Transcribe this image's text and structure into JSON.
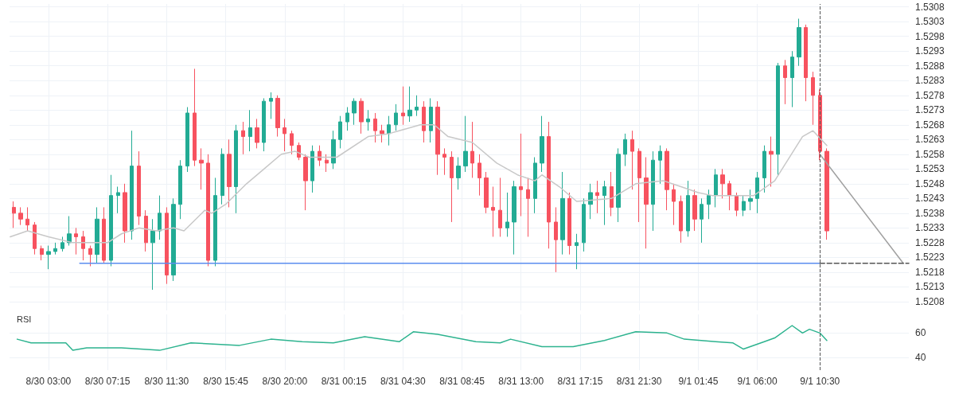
{
  "chart_data": [
    {
      "type": "candlestick",
      "grid": true,
      "tick_labels": "y",
      "xlim": [
        "--08-30T00:12",
        "--09-01T16:54"
      ],
      "ylim": [
        1.5205,
        1.5309
      ],
      "xticks": [
        {
          "value": "--08-30T03:00",
          "label": null
        },
        {
          "value": "--08-30T07:15",
          "label": null
        },
        {
          "value": "--08-30T11:30",
          "label": null
        },
        {
          "value": "--08-30T15:45",
          "label": null
        },
        {
          "value": "--08-30T20:00",
          "label": null
        },
        {
          "value": "--08-31T00:15",
          "label": null
        },
        {
          "value": "--08-31T04:30",
          "label": null
        },
        {
          "value": "--08-31T08:45",
          "label": null
        },
        {
          "value": "--08-31T13:00",
          "label": null
        },
        {
          "value": "--08-31T17:15",
          "label": null
        },
        {
          "value": "--08-31T21:30",
          "label": null
        },
        {
          "value": "--09-01T01:45",
          "label": null
        },
        {
          "value": "--09-01T06:00",
          "label": null
        },
        {
          "value": "--09-01T10:30",
          "label": null
        }
      ],
      "yticks": [
        1.5208,
        1.5213,
        1.5218,
        1.5223,
        1.5228,
        1.5233,
        1.5238,
        1.5243,
        1.5248,
        1.5253,
        1.5258,
        1.5263,
        1.5268,
        1.5273,
        1.5278,
        1.5283,
        1.5288,
        1.5293,
        1.5298,
        1.5303,
        1.5308
      ],
      "ref_lines": [
        {
          "axis": "x",
          "value": "--09-01T10:30",
          "color": "#555555",
          "line_style": "dashed"
        }
      ],
      "series": [
        {
          "x": [
            "--08-30T00:30",
            "--08-30T01:00",
            "--08-30T01:30",
            "--08-30T02:00",
            "--08-30T02:30",
            "--08-30T03:00",
            "--08-30T03:30",
            "--08-30T04:00",
            "--08-30T04:30",
            "--08-30T05:00",
            "--08-30T05:30",
            "--08-30T06:00",
            "--08-30T06:30",
            "--08-30T07:00",
            "--08-30T07:30",
            "--08-30T08:00",
            "--08-30T08:30",
            "--08-30T09:00",
            "--08-30T09:30",
            "--08-30T10:00",
            "--08-30T10:30",
            "--08-30T11:00",
            "--08-30T11:30",
            "--08-30T12:00",
            "--08-30T12:30",
            "--08-30T13:00",
            "--08-30T13:30",
            "--08-30T14:00",
            "--08-30T14:30",
            "--08-30T15:00",
            "--08-30T15:30",
            "--08-30T16:00",
            "--08-30T16:30",
            "--08-30T17:00",
            "--08-30T17:30",
            "--08-30T18:00",
            "--08-30T18:30",
            "--08-30T19:00",
            "--08-30T19:30",
            "--08-30T20:00",
            "--08-30T20:30",
            "--08-30T21:00",
            "--08-30T21:30",
            "--08-30T22:00",
            "--08-30T22:30",
            "--08-30T23:00",
            "--08-30T23:30",
            "--08-31T00:00",
            "--08-31T00:30",
            "--08-31T01:00",
            "--08-31T01:30",
            "--08-31T02:00",
            "--08-31T02:30",
            "--08-31T03:00",
            "--08-31T03:30",
            "--08-31T04:00",
            "--08-31T04:30",
            "--08-31T05:00",
            "--08-31T05:30",
            "--08-31T06:00",
            "--08-31T06:30",
            "--08-31T07:00",
            "--08-31T07:30",
            "--08-31T08:00",
            "--08-31T08:30",
            "--08-31T09:00",
            "--08-31T09:30",
            "--08-31T10:00",
            "--08-31T10:30",
            "--08-31T11:00",
            "--08-31T11:30",
            "--08-31T12:00",
            "--08-31T12:30",
            "--08-31T13:00",
            "--08-31T13:30",
            "--08-31T14:00",
            "--08-31T14:30",
            "--08-31T15:00",
            "--08-31T15:30",
            "--08-31T16:00",
            "--08-31T16:30",
            "--08-31T17:00",
            "--08-31T17:30",
            "--08-31T18:00",
            "--08-31T18:30",
            "--08-31T19:00",
            "--08-31T19:30",
            "--08-31T20:00",
            "--08-31T20:30",
            "--08-31T21:00",
            "--08-31T21:30",
            "--08-31T22:00",
            "--08-31T22:30",
            "--08-31T23:00",
            "--08-31T23:30",
            "--09-01T00:00",
            "--09-01T00:30",
            "--09-01T01:00",
            "--09-01T01:30",
            "--09-01T02:00",
            "--09-01T02:30",
            "--09-01T03:00",
            "--09-01T03:30",
            "--09-01T04:00",
            "--09-01T04:30",
            "--09-01T05:00",
            "--09-01T05:30",
            "--09-01T06:00",
            "--09-01T06:30",
            "--09-01T07:00",
            "--09-01T07:30",
            "--09-01T08:00",
            "--09-01T08:30",
            "--09-01T09:00",
            "--09-01T09:30",
            "--09-01T10:00",
            "--09-01T10:30",
            "--09-01T11:00"
          ],
          "ohlc": [
            [
              1.524,
              1.5242,
              1.5233,
              1.5238
            ],
            [
              1.5238,
              1.524,
              1.5234,
              1.5236
            ],
            [
              1.5236,
              1.524,
              1.5232,
              1.5234
            ],
            [
              1.5234,
              1.5235,
              1.5224,
              1.5226
            ],
            [
              1.5226,
              1.5227,
              1.5222,
              1.5224
            ],
            [
              1.5224,
              1.5227,
              1.5219,
              1.5225
            ],
            [
              1.5225,
              1.5228,
              1.5224,
              1.5226
            ],
            [
              1.5226,
              1.523,
              1.5225,
              1.5228
            ],
            [
              1.5228,
              1.5237,
              1.5227,
              1.5231
            ],
            [
              1.5231,
              1.5233,
              1.5224,
              1.523
            ],
            [
              1.523,
              1.5232,
              1.5222,
              1.5226
            ],
            [
              1.5226,
              1.5227,
              1.522,
              1.5224
            ],
            [
              1.5224,
              1.524,
              1.5221,
              1.5236
            ],
            [
              1.5236,
              1.524,
              1.5221,
              1.5222
            ],
            [
              1.5222,
              1.5251,
              1.522,
              1.5244
            ],
            [
              1.5244,
              1.5247,
              1.5238,
              1.5245
            ],
            [
              1.5245,
              1.5248,
              1.5228,
              1.5232
            ],
            [
              1.5232,
              1.5266,
              1.5229,
              1.5254
            ],
            [
              1.5254,
              1.5259,
              1.5234,
              1.5237
            ],
            [
              1.5237,
              1.5239,
              1.5225,
              1.5228
            ],
            [
              1.5228,
              1.5236,
              1.5212,
              1.5232
            ],
            [
              1.5232,
              1.5244,
              1.5229,
              1.5238
            ],
            [
              1.5238,
              1.524,
              1.5214,
              1.5217
            ],
            [
              1.5217,
              1.5243,
              1.5215,
              1.5241
            ],
            [
              1.5241,
              1.5256,
              1.5236,
              1.5254
            ],
            [
              1.5254,
              1.5274,
              1.5252,
              1.5272
            ],
            [
              1.5272,
              1.5287,
              1.5254,
              1.5256
            ],
            [
              1.5256,
              1.526,
              1.5246,
              1.5255
            ],
            [
              1.5255,
              1.5258,
              1.522,
              1.5222
            ],
            [
              1.5222,
              1.525,
              1.522,
              1.5244
            ],
            [
              1.5244,
              1.526,
              1.5241,
              1.5258
            ],
            [
              1.5258,
              1.5263,
              1.524,
              1.5247
            ],
            [
              1.5247,
              1.5268,
              1.5238,
              1.5266
            ],
            [
              1.5266,
              1.5269,
              1.5258,
              1.5264
            ],
            [
              1.5264,
              1.5273,
              1.5259,
              1.5267
            ],
            [
              1.5267,
              1.527,
              1.526,
              1.5262
            ],
            [
              1.5262,
              1.5277,
              1.5259,
              1.5276
            ],
            [
              1.5276,
              1.5279,
              1.527,
              1.5277
            ],
            [
              1.5277,
              1.5278,
              1.5264,
              1.5267
            ],
            [
              1.5267,
              1.527,
              1.5259,
              1.5265
            ],
            [
              1.5265,
              1.5266,
              1.5258,
              1.5261
            ],
            [
              1.5261,
              1.5262,
              1.5256,
              1.5257
            ],
            [
              1.5257,
              1.5258,
              1.5239,
              1.5249
            ],
            [
              1.5249,
              1.5261,
              1.5245,
              1.5259
            ],
            [
              1.5259,
              1.5261,
              1.5254,
              1.5256
            ],
            [
              1.5256,
              1.5258,
              1.5252,
              1.5255
            ],
            [
              1.5255,
              1.5266,
              1.5253,
              1.5263
            ],
            [
              1.5263,
              1.5271,
              1.526,
              1.5269
            ],
            [
              1.5269,
              1.5274,
              1.5266,
              1.5272
            ],
            [
              1.5272,
              1.5277,
              1.5268,
              1.5276
            ],
            [
              1.5276,
              1.5277,
              1.5265,
              1.5269
            ],
            [
              1.5269,
              1.5273,
              1.5266,
              1.527
            ],
            [
              1.527,
              1.5272,
              1.5262,
              1.5266
            ],
            [
              1.5266,
              1.5268,
              1.5262,
              1.5265
            ],
            [
              1.5265,
              1.5271,
              1.5261,
              1.5268
            ],
            [
              1.5268,
              1.5275,
              1.5266,
              1.5272
            ],
            [
              1.5272,
              1.5281,
              1.5268,
              1.5271
            ],
            [
              1.5271,
              1.5281,
              1.5269,
              1.5273
            ],
            [
              1.5273,
              1.5278,
              1.5271,
              1.5274
            ],
            [
              1.5274,
              1.5276,
              1.5262,
              1.5266
            ],
            [
              1.5266,
              1.5277,
              1.5262,
              1.5274
            ],
            [
              1.5274,
              1.5276,
              1.5251,
              1.5258
            ],
            [
              1.5258,
              1.526,
              1.5251,
              1.5257
            ],
            [
              1.5257,
              1.5259,
              1.5235,
              1.525
            ],
            [
              1.525,
              1.5257,
              1.5246,
              1.5254
            ],
            [
              1.5254,
              1.5271,
              1.5252,
              1.5259
            ],
            [
              1.5259,
              1.5269,
              1.525,
              1.5255
            ],
            [
              1.5255,
              1.5258,
              1.5244,
              1.525
            ],
            [
              1.525,
              1.5252,
              1.5238,
              1.524
            ],
            [
              1.524,
              1.5247,
              1.523,
              1.5239
            ],
            [
              1.5239,
              1.525,
              1.523,
              1.5233
            ],
            [
              1.5233,
              1.5245,
              1.523,
              1.5235
            ],
            [
              1.5235,
              1.5249,
              1.5224,
              1.5247
            ],
            [
              1.5247,
              1.5265,
              1.5237,
              1.5246
            ],
            [
              1.5246,
              1.525,
              1.523,
              1.5243
            ],
            [
              1.5243,
              1.5257,
              1.5238,
              1.5255
            ],
            [
              1.5255,
              1.5271,
              1.5252,
              1.5264
            ],
            [
              1.5264,
              1.5269,
              1.5226,
              1.5235
            ],
            [
              1.5235,
              1.524,
              1.5218,
              1.5229
            ],
            [
              1.5229,
              1.5252,
              1.5224,
              1.5243
            ],
            [
              1.5243,
              1.5245,
              1.5224,
              1.5227
            ],
            [
              1.5227,
              1.5231,
              1.5219,
              1.5228
            ],
            [
              1.5228,
              1.5243,
              1.5225,
              1.5241
            ],
            [
              1.5241,
              1.5248,
              1.5236,
              1.5245
            ],
            [
              1.5245,
              1.5249,
              1.5238,
              1.5244
            ],
            [
              1.5244,
              1.5249,
              1.5234,
              1.5247
            ],
            [
              1.5247,
              1.5252,
              1.5237,
              1.524
            ],
            [
              1.524,
              1.526,
              1.5235,
              1.5258
            ],
            [
              1.5258,
              1.5265,
              1.5254,
              1.5263
            ],
            [
              1.5263,
              1.5266,
              1.5246,
              1.5259
            ],
            [
              1.5259,
              1.526,
              1.5235,
              1.525
            ],
            [
              1.525,
              1.5257,
              1.5226,
              1.5241
            ],
            [
              1.5241,
              1.5259,
              1.5232,
              1.5256
            ],
            [
              1.5256,
              1.5261,
              1.5248,
              1.5259
            ],
            [
              1.5259,
              1.526,
              1.5239,
              1.5246
            ],
            [
              1.5246,
              1.5248,
              1.5234,
              1.5242
            ],
            [
              1.5242,
              1.5244,
              1.5228,
              1.5232
            ],
            [
              1.5232,
              1.5249,
              1.523,
              1.5244
            ],
            [
              1.5244,
              1.5246,
              1.5232,
              1.5236
            ],
            [
              1.5236,
              1.5243,
              1.5228,
              1.5241
            ],
            [
              1.5241,
              1.5246,
              1.5236,
              1.5244
            ],
            [
              1.5244,
              1.5253,
              1.524,
              1.5251
            ],
            [
              1.5251,
              1.5253,
              1.5243,
              1.5248
            ],
            [
              1.5248,
              1.5249,
              1.5239,
              1.5244
            ],
            [
              1.5244,
              1.5245,
              1.5237,
              1.5239
            ],
            [
              1.5239,
              1.5244,
              1.5237,
              1.5242
            ],
            [
              1.5242,
              1.5246,
              1.5239,
              1.5243
            ],
            [
              1.5243,
              1.5252,
              1.5238,
              1.525
            ],
            [
              1.525,
              1.5261,
              1.5245,
              1.5259
            ],
            [
              1.5259,
              1.5264,
              1.5247,
              1.5258
            ],
            [
              1.5258,
              1.5289,
              1.5251,
              1.5288
            ],
            [
              1.5288,
              1.529,
              1.5275,
              1.5284
            ],
            [
              1.5284,
              1.5293,
              1.5274,
              1.5291
            ],
            [
              1.5291,
              1.5304,
              1.5288,
              1.5301
            ],
            [
              1.5301,
              1.5302,
              1.5276,
              1.5284
            ],
            [
              1.5284,
              1.5286,
              1.5268,
              1.5278
            ],
            [
              1.5278,
              1.528,
              1.5256,
              1.5259
            ],
            [
              1.5259,
              1.526,
              1.5229,
              1.5232
            ]
          ],
          "colors": [
            "#f7525f",
            "#f7525f",
            "#f7525f",
            "#f7525f",
            "#f7525f",
            "#22ab94",
            "#22ab94",
            "#22ab94",
            "#22ab94",
            "#f7525f",
            "#f7525f",
            "#f7525f",
            "#22ab94",
            "#f7525f",
            "#22ab94",
            "#22ab94",
            "#f7525f",
            "#22ab94",
            "#f7525f",
            "#f7525f",
            "#22ab94",
            "#22ab94",
            "#f7525f",
            "#22ab94",
            "#22ab94",
            "#22ab94",
            "#f7525f",
            "#f7525f",
            "#f7525f",
            "#22ab94",
            "#22ab94",
            "#f7525f",
            "#22ab94",
            "#f7525f",
            "#22ab94",
            "#f7525f",
            "#22ab94",
            "#22ab94",
            "#f7525f",
            "#f7525f",
            "#f7525f",
            "#f7525f",
            "#f7525f",
            "#22ab94",
            "#f7525f",
            "#f7525f",
            "#22ab94",
            "#22ab94",
            "#22ab94",
            "#22ab94",
            "#f7525f",
            "#22ab94",
            "#f7525f",
            "#f7525f",
            "#22ab94",
            "#22ab94",
            "#f7525f",
            "#22ab94",
            "#22ab94",
            "#f7525f",
            "#22ab94",
            "#f7525f",
            "#f7525f",
            "#f7525f",
            "#22ab94",
            "#22ab94",
            "#f7525f",
            "#f7525f",
            "#f7525f",
            "#f7525f",
            "#f7525f",
            "#22ab94",
            "#22ab94",
            "#f7525f",
            "#f7525f",
            "#22ab94",
            "#22ab94",
            "#f7525f",
            "#f7525f",
            "#22ab94",
            "#f7525f",
            "#22ab94",
            "#22ab94",
            "#22ab94",
            "#f7525f",
            "#22ab94",
            "#f7525f",
            "#22ab94",
            "#22ab94",
            "#f7525f",
            "#f7525f",
            "#f7525f",
            "#22ab94",
            "#22ab94",
            "#f7525f",
            "#f7525f",
            "#f7525f",
            "#22ab94",
            "#f7525f",
            "#22ab94",
            "#22ab94",
            "#22ab94",
            "#f7525f",
            "#f7525f",
            "#f7525f",
            "#22ab94",
            "#22ab94",
            "#22ab94",
            "#22ab94",
            "#f7525f",
            "#22ab94",
            "#f7525f",
            "#22ab94",
            "#22ab94",
            "#f7525f",
            "#f7525f",
            "#f7525f",
            "#f7525f"
          ]
        },
        {
          "type": "line",
          "color": "#c8c8c8",
          "x": [
            "--08-30T00:15",
            "--08-30T01:30",
            "--08-30T03:00",
            "--08-30T04:45",
            "--08-30T06:15",
            "--08-30T07:15",
            "--08-30T08:15",
            "--08-30T09:30",
            "--08-30T10:45",
            "--08-30T12:00",
            "--08-30T12:45",
            "--08-30T14:15",
            "--08-30T14:45",
            "--08-30T15:45",
            "--08-30T17:15",
            "--08-30T18:30",
            "--08-30T19:45",
            "--08-30T20:45",
            "--08-30T21:45",
            "--08-30T23:45",
            "--08-31T02:00",
            "--08-31T03:30",
            "--08-31T05:45",
            "--08-31T06:45",
            "--08-31T07:45",
            "--08-31T09:30",
            "--08-31T11:15",
            "--08-31T12:45",
            "--08-31T14:00",
            "--08-31T14:30",
            "--08-31T15:45",
            "--08-31T17:00",
            "--08-31T19:30",
            "--08-31T21:15",
            "--08-31T23:15",
            "--09-01T00:30",
            "--09-01T01:45",
            "--09-01T02:45",
            "--09-01T04:30",
            "--09-01T05:45",
            "--09-01T07:15",
            "--09-01T09:15",
            "--09-01T10:00",
            "--09-01T11:00"
          ],
          "values": [
            1.523,
            1.5232,
            1.523,
            1.5228,
            1.5228,
            1.5228,
            1.5231,
            1.5233,
            1.5232,
            1.5233,
            1.5232,
            1.5239,
            1.5238,
            1.5241,
            1.5248,
            1.5253,
            1.5258,
            1.5259,
            1.5257,
            1.5257,
            1.5264,
            1.5265,
            1.5268,
            1.5268,
            1.5264,
            1.5262,
            1.5255,
            1.5251,
            1.5249,
            1.5251,
            1.5247,
            1.5242,
            1.5243,
            1.5248,
            1.5249,
            1.5247,
            1.5245,
            1.5244,
            1.5244,
            1.5244,
            1.5249,
            1.5264,
            1.5266,
            1.5261
          ]
        },
        {
          "type": "line",
          "color": "#5b8def",
          "x": [
            "--08-30T05:15",
            "--09-01T10:30"
          ],
          "values": [
            1.5221,
            1.5221
          ]
        },
        {
          "type": "line",
          "color": "#a0a0a0",
          "x": [
            "--09-01T10:30",
            "--09-01T16:30"
          ],
          "values": [
            1.5258,
            1.5221
          ]
        },
        {
          "type": "line",
          "color": "#555555",
          "line_style": "dashed",
          "x": [
            "--09-01T10:30",
            "--09-01T16:54"
          ],
          "values": [
            1.5221,
            1.5221
          ]
        }
      ]
    },
    {
      "type": "line",
      "title": "RSI",
      "grid": true,
      "xlim": [
        "--08-30T00:12",
        "--09-01T16:54"
      ],
      "ylim": [
        30,
        75
      ],
      "xticks": [
        {
          "value": "--08-30T03:00",
          "label": "8/30 03:00"
        },
        {
          "value": "--08-30T07:15",
          "label": "8/30 07:15"
        },
        {
          "value": "--08-30T11:30",
          "label": "8/30 11:30"
        },
        {
          "value": "--08-30T15:45",
          "label": "8/30 15:45"
        },
        {
          "value": "--08-30T20:00",
          "label": "8/30 20:00"
        },
        {
          "value": "--08-31T00:15",
          "label": "8/31 00:15"
        },
        {
          "value": "--08-31T04:30",
          "label": "8/31 04:30"
        },
        {
          "value": "--08-31T08:45",
          "label": "8/31 08:45"
        },
        {
          "value": "--08-31T13:00",
          "label": "8/31 13:00"
        },
        {
          "value": "--08-31T17:15",
          "label": "8/31 17:15"
        },
        {
          "value": "--08-31T21:30",
          "label": "8/31 21:30"
        },
        {
          "value": "--09-01T01:45",
          "label": "9/1 01:45"
        },
        {
          "value": "--09-01T06:00",
          "label": "9/1 06:00"
        },
        {
          "value": "--09-01T10:30",
          "label": "9/1 10:30"
        }
      ],
      "yticks": [
        40,
        60
      ],
      "ref_lines": [
        {
          "axis": "x",
          "value": "--09-01T10:30",
          "color": "#555555",
          "line_style": "dashed"
        }
      ],
      "series": [
        {
          "color": "#2db38f",
          "x": [
            "--08-30T00:45",
            "--08-30T01:45",
            "--08-30T04:15",
            "--08-30T04:45",
            "--08-30T05:45",
            "--08-30T08:15",
            "--08-30T11:00",
            "--08-30T13:15",
            "--08-30T16:45",
            "--08-30T19:00",
            "--08-30T21:15",
            "--08-30T23:30",
            "--08-31T01:45",
            "--08-31T04:15",
            "--08-31T05:15",
            "--08-31T07:00",
            "--08-31T09:45",
            "--08-31T11:30",
            "--08-31T12:15",
            "--08-31T14:30",
            "--08-31T16:45",
            "--08-31T19:00",
            "--08-31T21:15",
            "--08-31T23:30",
            "--09-01T00:45",
            "--09-01T03:00",
            "--09-01T04:15",
            "--09-01T05:00",
            "--09-01T06:30",
            "--09-01T07:15",
            "--09-01T08:30",
            "--09-01T09:15",
            "--09-01T09:45",
            "--09-01T10:30",
            "--09-01T11:00"
          ],
          "values": [
            55,
            52,
            52,
            46,
            48,
            48,
            46,
            52,
            50,
            55,
            53,
            52,
            57,
            53,
            61,
            59,
            53,
            52,
            55,
            49,
            49,
            54,
            61,
            60,
            55,
            53,
            52,
            47,
            53,
            56,
            66,
            60,
            63,
            60,
            54
          ]
        }
      ]
    }
  ]
}
